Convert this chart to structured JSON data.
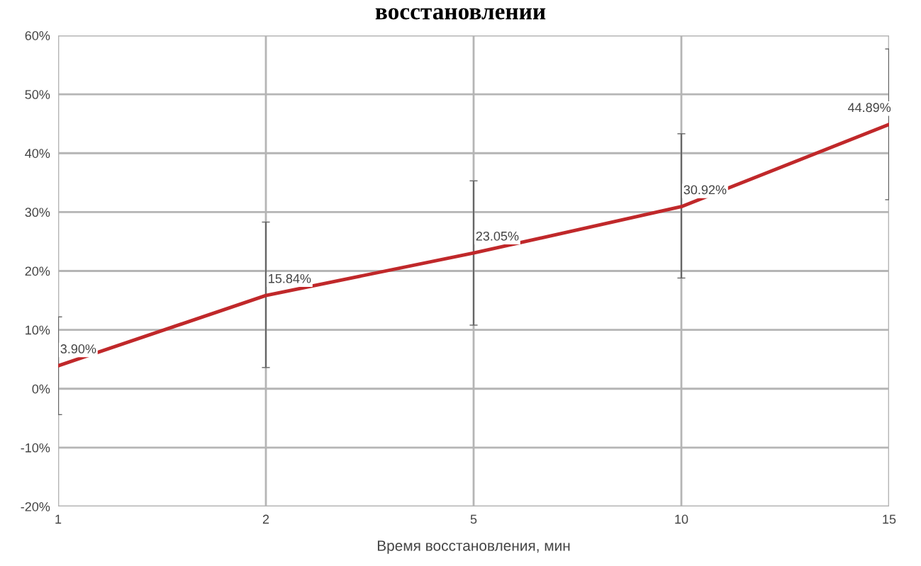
{
  "chart_data": {
    "type": "line",
    "title": "восстановлении",
    "xlabel": "Время восстановления, мин",
    "categories": [
      "1",
      "2",
      "5",
      "10",
      "15"
    ],
    "series": [
      {
        "color": "#c0282a",
        "values": [
          3.9,
          15.84,
          23.05,
          30.92,
          44.89
        ],
        "errors": [
          [
            -4.4,
            12.2
          ],
          [
            3.6,
            28.3
          ],
          [
            10.8,
            35.3
          ],
          [
            18.8,
            43.3
          ],
          [
            32.1,
            57.7
          ]
        ],
        "value_labels": [
          "3.90%",
          "15.84%",
          "23.05%",
          "30.92%",
          "44.89%"
        ]
      }
    ],
    "ylim": [
      -20,
      60
    ],
    "yticks": [
      {
        "value": -20,
        "label": "-20%"
      },
      {
        "value": -10,
        "label": "-10%"
      },
      {
        "value": 0,
        "label": "0%"
      },
      {
        "value": 10,
        "label": "10%"
      },
      {
        "value": 20,
        "label": "20%"
      },
      {
        "value": 30,
        "label": "30%"
      },
      {
        "value": 40,
        "label": "40%"
      },
      {
        "value": 50,
        "label": "50%"
      },
      {
        "value": 60,
        "label": "60%"
      }
    ],
    "grid": true,
    "marker": "none",
    "line_style": "solid"
  }
}
